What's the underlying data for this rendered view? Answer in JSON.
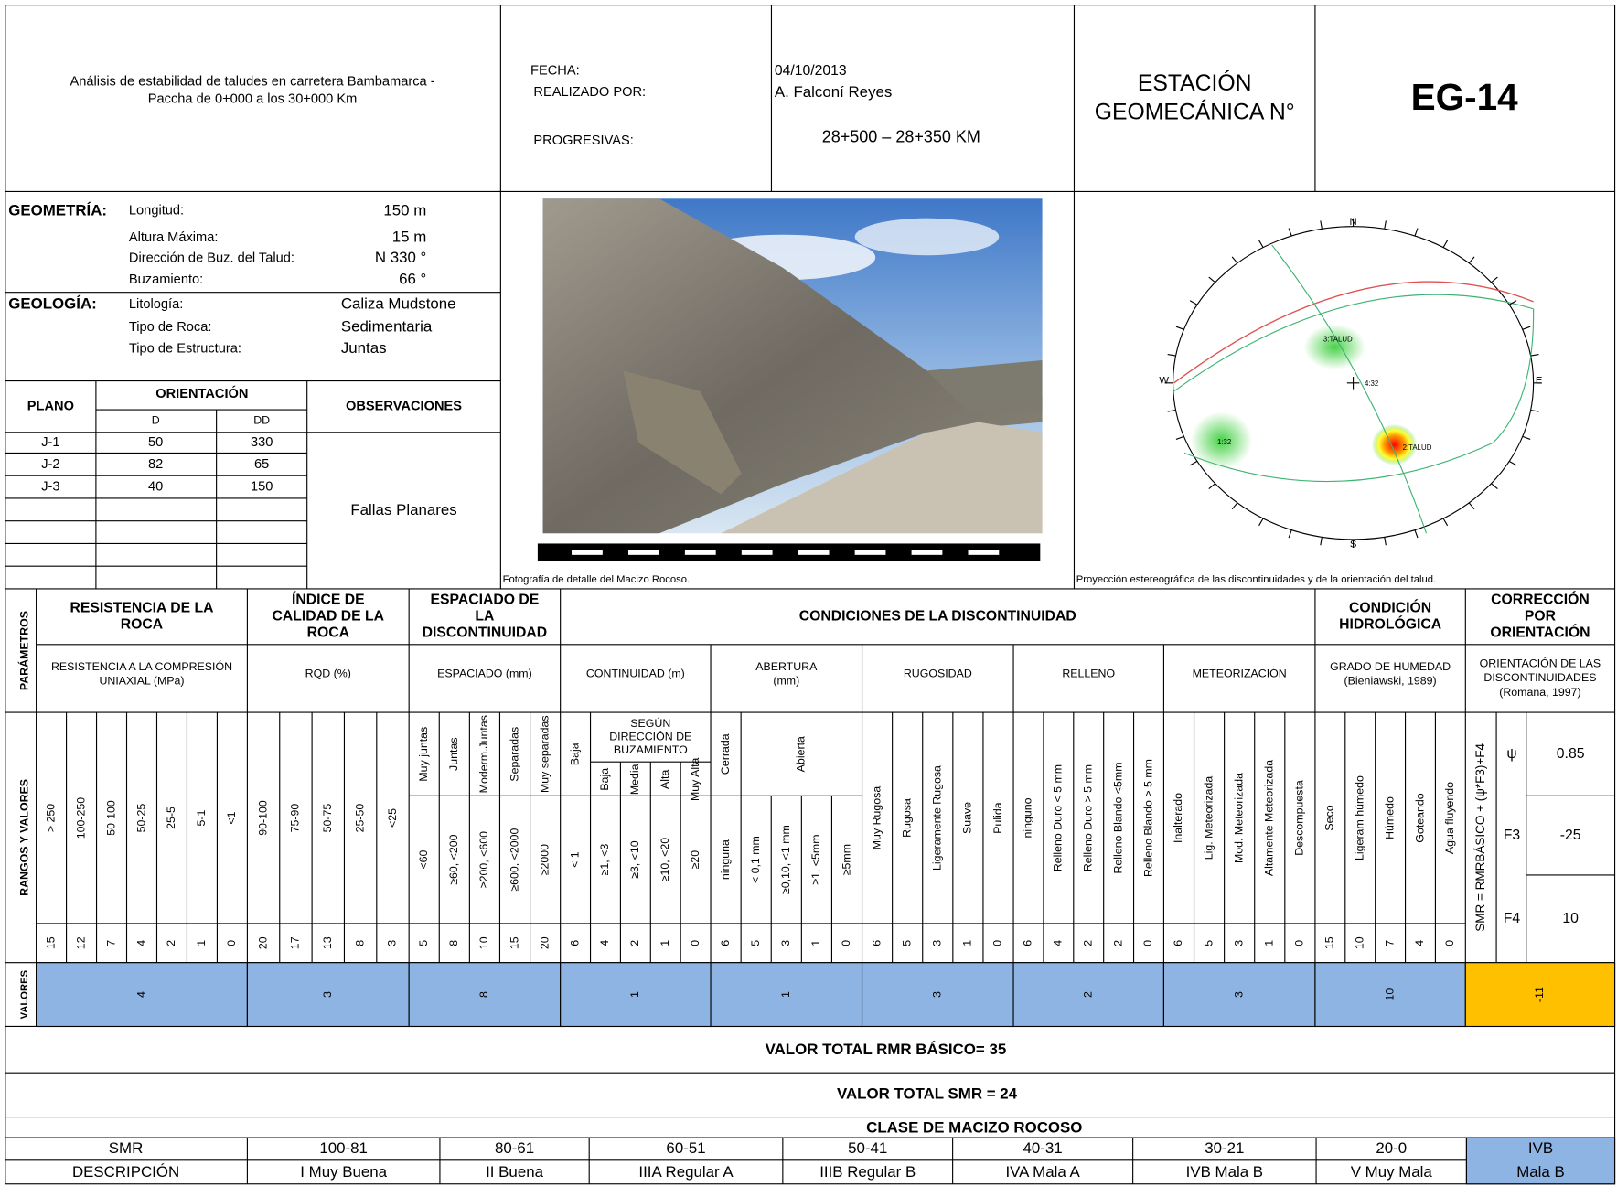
{
  "header": {
    "title_lines": [
      "Análisis de estabilidad de taludes en carretera Bambamarca -",
      "Paccha de 0+000 a los 30+000 Km"
    ],
    "date_label": "FECHA:",
    "author_label": "REALIZADO POR:",
    "progress_label": "PROGRESIVAS:",
    "date": "04/10/2013",
    "author": "A. Falconí Reyes",
    "progress": "28+500 – 28+350 KM",
    "station_label_lines": [
      "ESTACIÓN",
      "GEOMECÁNICA N°"
    ],
    "station": "EG-14"
  },
  "geometry": {
    "label": "GEOMETRÍA:",
    "rows": [
      {
        "field": "Longitud:",
        "value": "150 m"
      },
      {
        "field": "Altura Máxima:",
        "value": "15 m"
      },
      {
        "field": "Dirección de Buz. del Talud:",
        "value": "N 330 °"
      },
      {
        "field": "Buzamiento:",
        "value": "66 °"
      }
    ]
  },
  "geology": {
    "label": "GEOLOGÍA:",
    "rows": [
      {
        "field": "Litología:",
        "value": "Caliza Mudstone"
      },
      {
        "field": "Tipo de Roca:",
        "value": "Sedimentaria"
      },
      {
        "field": "Tipo de Estructura:",
        "value": "Juntas"
      }
    ]
  },
  "planes": {
    "plane_header": "PLANO",
    "orientation_header": "ORIENTACIÓN",
    "dip_header": "D",
    "dip_dir_header": "DD",
    "observations_header": "OBSERVACIONES",
    "rows": [
      [
        "J-1",
        "50",
        "330"
      ],
      [
        "J-2",
        "82",
        "65"
      ],
      [
        "J-3",
        "40",
        "150"
      ]
    ],
    "observation": "Fallas Planares"
  },
  "photo": {
    "caption": "Fotografía de detalle del Macizo Rocoso."
  },
  "stereonet": {
    "caption": "Proyección estereográfica de las discontinuidades y de la orientación del talud.",
    "north": "N",
    "south": "S",
    "east": "E",
    "west": "W",
    "labels": [
      "3:TALUD",
      "4:32",
      "1:32",
      "2:TALUD"
    ]
  },
  "rating": {
    "row_labels": {
      "parameters": "PARÁMETROS",
      "ranges": "RANGOS Y VALORES",
      "values": "VALORES"
    },
    "conditions_header": "CONDICIONES DE LA DISCONTINUIDAD",
    "groups": [
      {
        "header_lines": [
          "RESISTENCIA DE LA",
          "ROCA"
        ],
        "subheader_lines": [
          "RESISTENCIA A LA COMPRESIÓN",
          "UNIAXIAL (MPa)"
        ],
        "ranges": [
          "> 250",
          "100-250",
          "50-100",
          "50-25",
          "25-5",
          "5-1",
          "<1"
        ],
        "scores": [
          15,
          12,
          7,
          4,
          2,
          1,
          0
        ],
        "value": 4
      },
      {
        "header_lines": [
          "ÍNDICE DE",
          "CALIDAD DE LA",
          "ROCA"
        ],
        "subheader_lines": [
          "RQD (%)"
        ],
        "ranges": [
          "90-100",
          "75-90",
          "50-75",
          "25-50",
          "<25"
        ],
        "scores": [
          20,
          17,
          13,
          8,
          3
        ],
        "value": 3
      },
      {
        "header_lines": [
          "ESPACIADO DE",
          "LA",
          "DISCONTINUIDAD"
        ],
        "subheader_lines": [
          "ESPACIADO (mm)"
        ],
        "ranges_top": [
          "Muy juntas",
          "Juntas",
          "Moderm.Juntas",
          "Separadas",
          "Muy separadas"
        ],
        "ranges": [
          "<60",
          "≥60, <200",
          "≥200, <600",
          "≥600, <2000",
          "≥2000"
        ],
        "scores": [
          5,
          8,
          10,
          15,
          20
        ],
        "value": 8
      },
      {
        "subheader_lines": [
          "CONTINUIDAD (m)"
        ],
        "ranges_top_header_lines": [
          "SEGÚN",
          "DIRECCIÓN DE",
          "BUZAMIENTO"
        ],
        "ranges_top": [
          "Baja",
          "Baja",
          "Media",
          "Alta",
          "Muy Alta"
        ],
        "ranges": [
          "< 1",
          "≥1, <3",
          "≥3, <10",
          "≥10, <20",
          "≥20"
        ],
        "scores": [
          6,
          4,
          2,
          1,
          0
        ],
        "value": 1
      },
      {
        "subheader_lines": [
          "ABERTURA",
          "(mm)"
        ],
        "ranges_top": [
          "Cerrada",
          "Abierta"
        ],
        "ranges": [
          "ninguna",
          "< 0,1 mm",
          "≥0,10, <1 mm",
          "≥1, <5mm",
          "≥5mm"
        ],
        "scores": [
          6,
          5,
          3,
          1,
          0
        ],
        "value": 1
      },
      {
        "subheader_lines": [
          "RUGOSIDAD"
        ],
        "ranges": [
          "Muy Rugosa",
          "Rugosa",
          "Ligeramente Rugosa",
          "Suave",
          "Pulida"
        ],
        "scores": [
          6,
          5,
          3,
          1,
          0
        ],
        "value": 3
      },
      {
        "subheader_lines": [
          "RELLENO"
        ],
        "ranges": [
          "ninguno",
          "Relleno Duro < 5 mm",
          "Relleno Duro > 5 mm",
          "Relleno Blando <5mm",
          "Relleno Blando > 5 mm"
        ],
        "scores": [
          6,
          4,
          2,
          2,
          0
        ],
        "value": 2
      },
      {
        "subheader_lines": [
          "METEORIZACIÓN"
        ],
        "ranges": [
          "Inalterado",
          "Lig. Meteorizada",
          "Mod. Meteorizada",
          "Altamente Meteorizada",
          "Descompuesta"
        ],
        "scores": [
          6,
          5,
          3,
          1,
          0
        ],
        "value": 3
      },
      {
        "header_lines": [
          "CONDICIÓN",
          "HIDROLÓGICA"
        ],
        "subheader_lines": [
          "GRADO DE HUMEDAD",
          "(Bieniawski, 1989)"
        ],
        "ranges": [
          "Seco",
          "Ligeram húmedo",
          "Húmedo",
          "Goteando",
          "Agua fluyendo"
        ],
        "scores": [
          15,
          10,
          7,
          4,
          0
        ],
        "value": 10
      }
    ]
  },
  "correction": {
    "header_lines": [
      "CORRECCIÓN",
      "POR",
      "ORIENTACIÓN"
    ],
    "subheader_lines": [
      "ORIENTACIÓN DE LAS",
      "DISCONTINUIDADES",
      "(Romana, 1997)"
    ],
    "formula": "SMR = RMRBÁSICO + (ψ*F3)+F4",
    "factors": [
      {
        "label": "ψ",
        "value": 0.85
      },
      {
        "label": "F3",
        "value": -25
      },
      {
        "label": "F4",
        "value": 10
      }
    ],
    "value": -11
  },
  "totals": {
    "rmr": "VALOR TOTAL RMR BÁSICO= 35",
    "smr": "VALOR TOTAL SMR = 24"
  },
  "classification": {
    "title": "CLASE DE MACIZO ROCOSO",
    "row_labels": [
      "SMR",
      "DESCRIPCIÓN"
    ],
    "classes": [
      {
        "range": "100-81",
        "description": "I Muy Buena"
      },
      {
        "range": "80-61",
        "description": "II Buena"
      },
      {
        "range": "60-51",
        "description": "IIIA Regular A"
      },
      {
        "range": "50-41",
        "description": "IIIB Regular B"
      },
      {
        "range": "40-31",
        "description": "IVA Mala A"
      },
      {
        "range": "30-21",
        "description": "IVB Mala B"
      },
      {
        "range": "20-0",
        "description": "V Muy Mala"
      }
    ],
    "result": {
      "class": "IVB",
      "description": "Mala B"
    }
  }
}
